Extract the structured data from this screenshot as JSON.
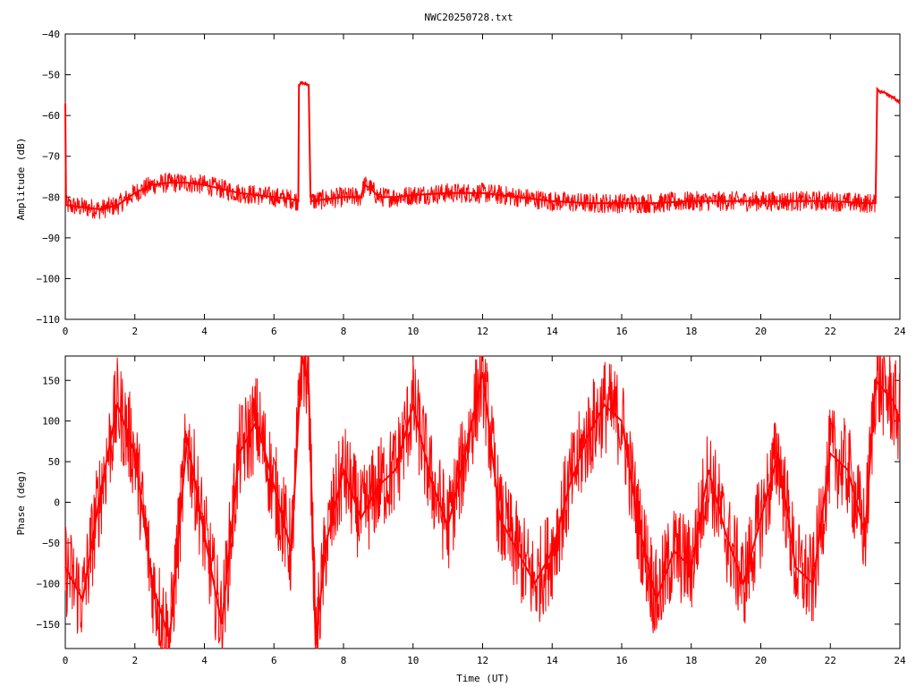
{
  "title": "NWC20250728.txt",
  "colors": {
    "series": "#ff0000",
    "axis": "#000000",
    "background": "#ffffff"
  },
  "chart_data": [
    {
      "type": "line",
      "title": "NWC20250728.txt",
      "xlabel": "",
      "ylabel": "Amplitude (dB)",
      "xlim": [
        0,
        24
      ],
      "ylim": [
        -110,
        -40
      ],
      "xticks": [
        "0",
        "2",
        "4",
        "6",
        "8",
        "10",
        "12",
        "14",
        "16",
        "18",
        "20",
        "22",
        "24"
      ],
      "yticks": [
        "-40",
        "-50",
        "-60",
        "-70",
        "-80",
        "-90",
        "-100",
        "-110"
      ],
      "grid": false,
      "legend": "none",
      "series": [
        {
          "x": [
            0,
            0.02,
            0.05,
            0.5,
            1.0,
            1.5,
            2.0,
            2.5,
            3.0,
            3.5,
            4.0,
            4.5,
            5.0,
            5.5,
            6.0,
            6.5,
            6.7,
            6.72,
            6.8,
            7.0,
            7.05,
            7.1,
            7.5,
            8.0,
            8.5,
            8.6,
            8.8,
            9.0,
            9.5,
            10.0,
            11.0,
            12.0,
            13.0,
            14.0,
            15.0,
            16.0,
            17.0,
            18.0,
            19.0,
            20.0,
            21.0,
            22.0,
            23.0,
            23.3,
            23.35,
            23.4,
            23.6,
            23.8,
            24.0
          ],
          "values": [
            -57,
            -82,
            -82,
            -82.5,
            -83,
            -82,
            -79,
            -77,
            -76.5,
            -76.5,
            -77,
            -78,
            -79,
            -79.5,
            -80,
            -80.5,
            -81,
            -52.5,
            -52,
            -52.5,
            -80,
            -81,
            -80.5,
            -80,
            -80,
            -77,
            -78,
            -80,
            -80,
            -79.5,
            -79,
            -79,
            -80,
            -81,
            -81.5,
            -81.5,
            -81.5,
            -81,
            -81,
            -81,
            -81,
            -81,
            -81.5,
            -81.5,
            -53.5,
            -54,
            -54.5,
            -55.5,
            -57
          ]
        }
      ]
    },
    {
      "type": "line",
      "title": "",
      "xlabel": "Time (UT)",
      "ylabel": "Phase (deg)",
      "xlim": [
        0,
        24
      ],
      "ylim": [
        -180,
        180
      ],
      "xticks": [
        "0",
        "2",
        "4",
        "6",
        "8",
        "10",
        "12",
        "14",
        "16",
        "18",
        "20",
        "22",
        "24"
      ],
      "yticks": [
        "150",
        "100",
        "50",
        "0",
        "-50",
        "-100",
        "-150"
      ],
      "grid": false,
      "legend": "none",
      "series": [
        {
          "x": [
            0,
            0.5,
            1.0,
            1.5,
            2.0,
            2.5,
            3.0,
            3.5,
            4.0,
            4.5,
            5.0,
            5.5,
            6.0,
            6.5,
            6.8,
            7.0,
            7.2,
            7.5,
            8.0,
            8.5,
            9.0,
            9.5,
            10.0,
            10.5,
            11.0,
            11.5,
            12.0,
            12.5,
            13.0,
            13.5,
            14.0,
            14.5,
            15.0,
            15.5,
            16.0,
            16.5,
            17.0,
            17.5,
            18.0,
            18.5,
            19.0,
            19.5,
            20.0,
            20.5,
            21.0,
            21.5,
            22.0,
            22.5,
            23.0,
            23.3,
            23.5,
            23.8,
            24.0
          ],
          "values": [
            -80,
            -120,
            10,
            120,
            60,
            -100,
            -170,
            80,
            -40,
            -150,
            60,
            100,
            20,
            -60,
            180,
            145,
            -175,
            -50,
            40,
            -20,
            20,
            40,
            120,
            30,
            -30,
            60,
            160,
            -20,
            -60,
            -100,
            -60,
            20,
            80,
            120,
            100,
            -30,
            -120,
            -60,
            -80,
            40,
            -40,
            -100,
            -20,
            60,
            -80,
            -100,
            60,
            40,
            -40,
            150,
            140,
            125,
            100
          ]
        }
      ]
    }
  ]
}
